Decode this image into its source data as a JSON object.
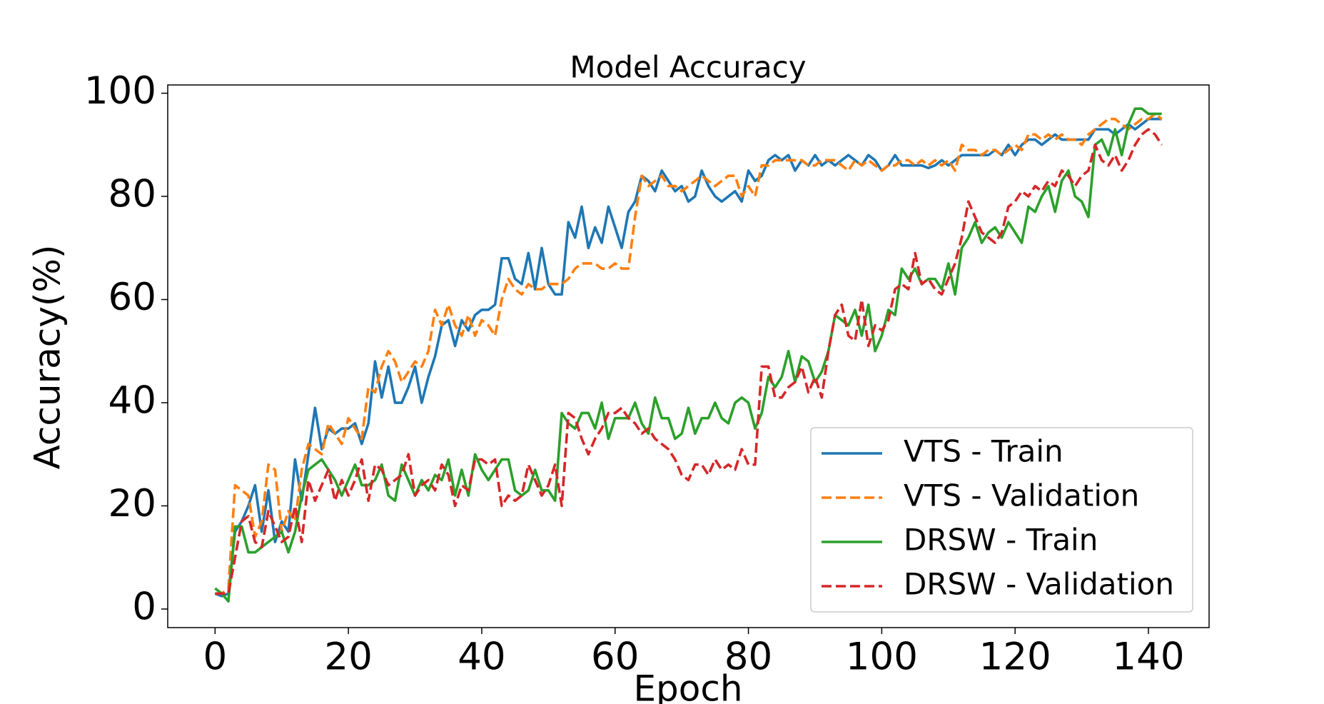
{
  "chart_data": {
    "type": "line",
    "title": "Model Accuracy",
    "x_label": "Epoch",
    "y_label": "Accuracy(%)",
    "x": [
      0,
      1,
      2,
      3,
      4,
      5,
      6,
      7,
      8,
      9,
      10,
      11,
      12,
      13,
      14,
      15,
      16,
      17,
      18,
      19,
      20,
      21,
      22,
      23,
      24,
      25,
      26,
      27,
      28,
      29,
      30,
      31,
      32,
      33,
      34,
      35,
      36,
      37,
      38,
      39,
      40,
      41,
      42,
      43,
      44,
      45,
      46,
      47,
      48,
      49,
      50,
      51,
      52,
      53,
      54,
      55,
      56,
      57,
      58,
      59,
      60,
      61,
      62,
      63,
      64,
      65,
      66,
      67,
      68,
      69,
      70,
      71,
      72,
      73,
      74,
      75,
      76,
      77,
      78,
      79,
      80,
      81,
      82,
      83,
      84,
      85,
      86,
      87,
      88,
      89,
      90,
      91,
      92,
      93,
      94,
      95,
      96,
      97,
      98,
      99,
      100,
      101,
      102,
      103,
      104,
      105,
      106,
      107,
      108,
      109,
      110,
      111,
      112,
      113,
      114,
      115,
      116,
      117,
      118,
      119,
      120,
      121,
      122,
      123,
      124,
      125,
      126,
      127,
      128,
      129,
      130,
      131,
      132,
      133,
      134,
      135,
      136,
      137,
      138,
      139,
      140,
      141,
      142
    ],
    "series": [
      {
        "name": "VTS - Train",
        "color": "#1f77b4",
        "linestyle": "solid",
        "values": [
          3,
          2.5,
          3,
          15,
          17,
          20,
          24,
          15,
          23,
          13,
          17,
          15,
          29,
          21,
          30,
          39,
          31,
          35,
          34,
          35,
          35,
          36,
          32,
          36,
          48,
          41,
          47,
          40,
          40,
          43,
          47,
          40,
          45,
          49,
          55,
          56,
          51,
          56,
          54,
          57,
          58,
          58,
          59,
          68,
          68,
          64,
          63,
          69,
          62,
          70,
          63,
          61,
          61,
          75,
          72,
          78,
          70,
          74,
          71,
          78,
          74,
          70,
          77,
          79,
          84,
          83,
          81,
          85,
          83,
          81,
          82,
          79,
          80,
          85,
          82,
          80,
          79,
          80,
          81,
          79,
          85,
          83,
          84,
          87,
          88,
          87,
          88,
          85,
          87,
          86,
          88,
          86,
          87,
          86,
          87,
          88,
          87,
          86,
          88,
          87,
          85,
          86,
          88,
          86,
          86,
          86,
          86,
          85.5,
          86,
          87,
          86,
          87,
          88,
          88,
          88,
          88,
          88,
          89,
          88,
          90,
          88,
          90,
          91,
          91,
          90,
          91,
          92,
          91,
          91,
          91,
          91,
          91,
          93,
          93,
          93,
          92,
          93,
          94,
          93,
          94,
          95,
          95,
          95
        ]
      },
      {
        "name": "VTS - Validation",
        "color": "#ff7f0e",
        "linestyle": "dashed",
        "values": [
          3,
          3,
          4,
          24,
          23,
          22,
          14,
          17,
          28,
          27,
          15,
          19,
          17,
          27,
          32,
          31,
          30,
          36,
          34,
          32,
          37,
          35,
          33,
          43,
          42,
          47,
          50,
          48,
          44,
          46,
          48,
          47,
          50,
          58,
          55,
          59,
          55,
          53,
          57,
          53,
          56,
          55,
          53,
          60,
          64,
          62,
          61,
          63,
          62,
          62,
          63,
          63,
          63,
          64,
          66,
          67,
          67,
          67,
          66,
          66,
          67,
          66,
          66,
          76,
          84,
          82,
          83,
          84,
          82,
          82,
          81,
          82,
          83,
          84,
          83,
          82,
          83,
          84,
          84,
          80,
          82,
          80,
          86,
          86,
          87,
          87,
          87,
          87,
          87,
          86,
          86,
          87,
          87,
          87,
          86,
          85,
          87,
          86,
          87,
          86,
          85,
          86,
          86,
          87,
          87,
          86,
          87,
          86,
          87,
          86,
          87,
          85,
          90,
          89,
          89,
          88,
          89,
          89,
          88,
          89,
          90,
          89,
          92,
          92,
          91,
          92,
          91,
          92,
          91,
          91,
          90,
          92,
          93,
          94,
          95,
          95,
          94,
          93,
          94,
          95,
          95,
          96,
          95
        ]
      },
      {
        "name": "DRSW - Train",
        "color": "#2ca02c",
        "linestyle": "solid",
        "values": [
          4,
          3,
          1.5,
          16,
          16,
          11,
          11,
          12,
          13,
          14,
          15,
          11,
          15,
          22,
          27,
          28,
          29,
          27,
          25,
          22,
          25,
          28,
          24,
          24,
          25,
          28,
          22,
          21,
          28,
          25,
          22,
          25,
          23,
          26,
          25,
          29,
          22,
          27,
          22,
          30,
          27,
          25,
          27,
          29,
          29,
          23,
          22,
          23,
          27,
          23,
          23,
          21,
          38,
          36,
          35,
          38,
          38,
          35,
          40,
          33,
          37,
          37,
          37,
          40,
          36,
          34,
          41,
          37,
          37,
          33,
          34,
          39,
          34,
          37,
          37,
          40,
          37,
          36,
          40,
          41,
          40,
          35,
          38,
          45,
          43,
          45,
          50,
          44,
          49,
          48,
          44,
          46,
          50,
          57,
          56,
          55,
          58,
          53,
          59,
          50,
          53,
          58,
          57,
          66,
          64,
          66,
          63,
          64,
          64,
          62,
          67,
          61,
          70,
          72,
          75,
          71,
          73,
          74,
          72,
          75,
          73,
          71,
          78,
          77,
          80,
          82,
          77,
          83,
          85,
          80,
          79,
          76,
          90,
          91,
          88,
          93,
          88,
          94,
          97,
          97,
          96,
          96,
          96
        ]
      },
      {
        "name": "DRSW - Validation",
        "color": "#d62728",
        "linestyle": "dashed",
        "values": [
          3,
          3,
          3,
          10,
          17,
          18,
          13,
          12,
          19,
          16,
          13,
          14,
          20,
          13,
          25,
          21,
          24,
          27,
          21,
          25,
          22,
          25,
          29,
          21,
          28,
          27,
          24,
          25,
          26,
          30,
          22,
          24,
          25,
          23,
          28,
          26,
          20,
          24,
          23,
          29,
          29,
          28,
          29,
          20,
          22,
          21,
          22,
          28,
          25,
          22,
          24,
          28,
          20,
          38,
          37,
          33,
          30,
          33,
          35,
          38,
          38,
          39,
          37,
          36,
          34,
          35,
          33,
          32,
          31,
          29,
          26,
          25,
          28,
          28,
          26,
          29,
          27,
          28,
          27,
          31,
          28,
          28,
          47,
          47,
          41,
          41,
          43,
          44,
          47,
          42,
          45,
          41,
          50,
          57,
          59,
          53,
          52,
          60,
          51,
          55,
          54,
          56,
          62,
          63,
          62,
          69,
          63,
          64,
          62,
          61,
          64,
          67,
          72,
          79,
          76,
          73,
          72,
          71,
          73,
          78,
          79,
          81,
          80,
          82,
          81,
          83,
          82,
          85,
          84,
          82,
          84,
          85,
          90,
          87,
          86,
          88,
          85,
          87,
          90,
          92,
          93,
          92,
          90
        ]
      }
    ],
    "xlim": [
      -7.1,
      149.1
    ],
    "ylim": [
      -3.6,
      101.6
    ],
    "xticks": [
      0,
      20,
      40,
      60,
      80,
      100,
      120,
      140
    ],
    "yticks": [
      0,
      20,
      40,
      60,
      80,
      100
    ],
    "grid": false,
    "legend_loc": "lower right"
  }
}
